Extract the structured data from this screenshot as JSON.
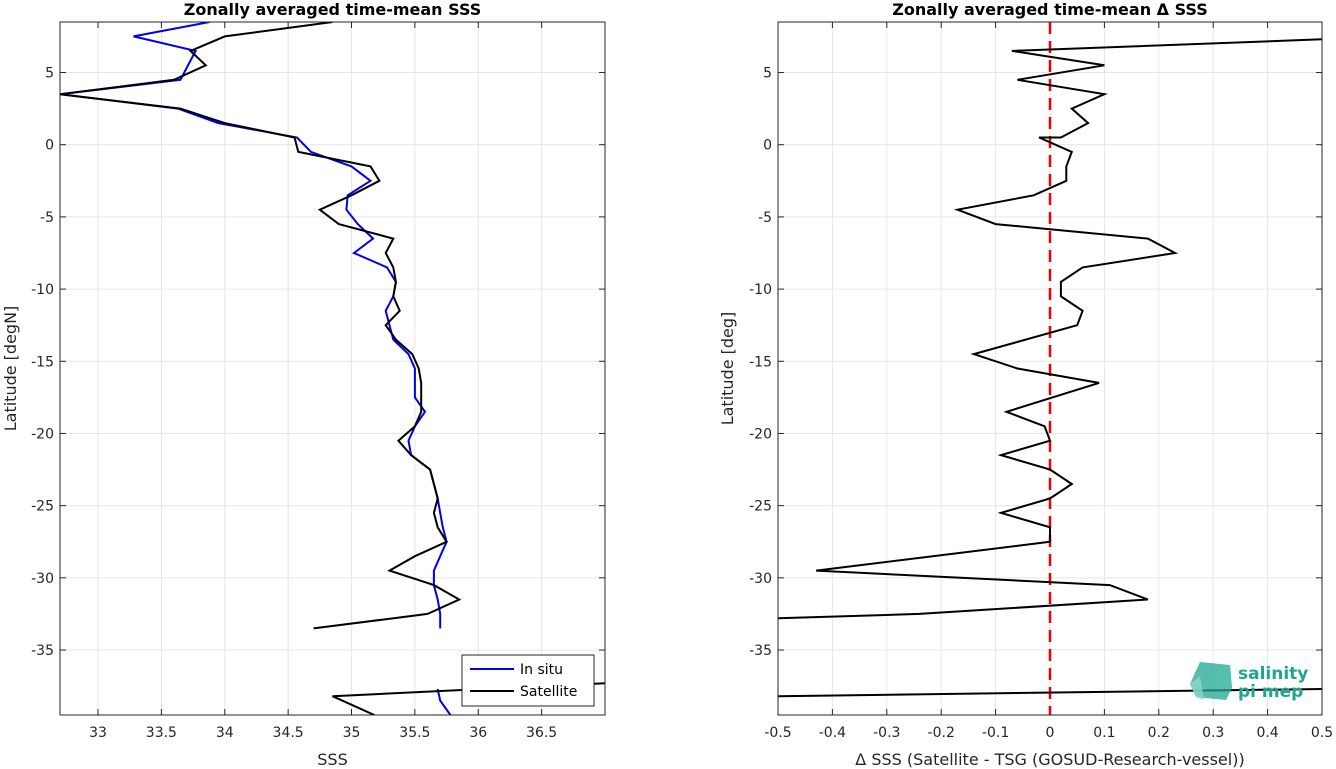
{
  "chart_data": [
    {
      "type": "line",
      "title": "Zonally averaged time-mean SSS",
      "xlabel": "SSS",
      "ylabel": "Latitude [degN]",
      "xlim": [
        32.7,
        37.0
      ],
      "ylim": [
        -39.5,
        8.5
      ],
      "xticks": [
        "33",
        "33.5",
        "34",
        "34.5",
        "35",
        "35.5",
        "36",
        "36.5"
      ],
      "yticks": [
        "5",
        "0",
        "-5",
        "-10",
        "-15",
        "-20",
        "-25",
        "-30",
        "-35"
      ],
      "grid": true,
      "legend": {
        "position": "bottom-right",
        "entries": [
          "In situ",
          "Satellite"
        ]
      },
      "series": [
        {
          "name": "In situ",
          "color": "#0000ee",
          "segments": [
            [
              [
                33.88,
                8.5
              ],
              [
                33.28,
                7.5
              ],
              [
                33.77,
                6.5
              ],
              [
                33.65,
                4.5
              ],
              [
                32.7,
                3.5
              ],
              [
                33.63,
                2.5
              ],
              [
                33.95,
                1.5
              ],
              [
                34.57,
                0.5
              ],
              [
                34.68,
                -0.5
              ],
              [
                35.0,
                -1.5
              ],
              [
                35.15,
                -2.5
              ],
              [
                34.97,
                -3.5
              ],
              [
                34.96,
                -4.5
              ],
              [
                35.05,
                -5.5
              ],
              [
                35.17,
                -6.5
              ],
              [
                35.02,
                -7.5
              ],
              [
                35.28,
                -8.5
              ],
              [
                35.35,
                -9.5
              ],
              [
                35.33,
                -10.5
              ],
              [
                35.27,
                -11.5
              ],
              [
                35.3,
                -12.5
              ],
              [
                35.33,
                -13.5
              ],
              [
                35.45,
                -14.5
              ],
              [
                35.5,
                -15.5
              ],
              [
                35.5,
                -16.5
              ],
              [
                35.5,
                -17.5
              ],
              [
                35.58,
                -18.5
              ],
              [
                35.5,
                -19.5
              ],
              [
                35.45,
                -20.5
              ],
              [
                35.47,
                -21.5
              ],
              [
                35.62,
                -22.5
              ],
              [
                35.65,
                -23.5
              ],
              [
                35.68,
                -24.5
              ],
              [
                35.7,
                -25.5
              ],
              [
                35.72,
                -26.5
              ],
              [
                35.75,
                -27.5
              ],
              [
                35.7,
                -28.5
              ],
              [
                35.65,
                -29.5
              ],
              [
                35.65,
                -30.5
              ],
              [
                35.68,
                -31.5
              ],
              [
                35.7,
                -32.5
              ],
              [
                35.7,
                -33.5
              ]
            ],
            [
              [
                35.68,
                -37.7
              ],
              [
                35.7,
                -38.5
              ],
              [
                35.78,
                -39.5
              ]
            ]
          ]
        },
        {
          "name": "Satellite",
          "color": "#000000",
          "segments": [
            [
              [
                34.85,
                8.5
              ],
              [
                34.0,
                7.5
              ],
              [
                33.73,
                6.5
              ],
              [
                33.85,
                5.5
              ],
              [
                33.6,
                4.5
              ],
              [
                32.7,
                3.5
              ],
              [
                33.65,
                2.5
              ],
              [
                34.0,
                1.5
              ],
              [
                34.55,
                0.5
              ],
              [
                34.58,
                -0.5
              ],
              [
                35.15,
                -1.5
              ],
              [
                35.22,
                -2.5
              ],
              [
                35.0,
                -3.5
              ],
              [
                34.75,
                -4.5
              ],
              [
                34.9,
                -5.5
              ],
              [
                35.33,
                -6.5
              ],
              [
                35.27,
                -7.5
              ],
              [
                35.33,
                -8.5
              ],
              [
                35.35,
                -9.5
              ],
              [
                35.33,
                -10.5
              ],
              [
                35.38,
                -11.5
              ],
              [
                35.27,
                -12.5
              ],
              [
                35.35,
                -13.5
              ],
              [
                35.48,
                -14.5
              ],
              [
                35.53,
                -15.5
              ],
              [
                35.55,
                -16.5
              ],
              [
                35.55,
                -17.5
              ],
              [
                35.55,
                -18.5
              ],
              [
                35.5,
                -19.5
              ],
              [
                35.37,
                -20.5
              ],
              [
                35.47,
                -21.5
              ],
              [
                35.62,
                -22.5
              ],
              [
                35.65,
                -23.5
              ],
              [
                35.68,
                -24.5
              ],
              [
                35.65,
                -25.5
              ],
              [
                35.68,
                -26.5
              ],
              [
                35.75,
                -27.5
              ],
              [
                35.5,
                -28.5
              ],
              [
                35.3,
                -29.5
              ],
              [
                35.65,
                -30.5
              ],
              [
                35.85,
                -31.5
              ],
              [
                35.6,
                -32.5
              ],
              [
                34.7,
                -33.5
              ]
            ],
            [
              [
                37.0,
                -37.3
              ],
              [
                34.85,
                -38.2
              ],
              [
                35.18,
                -39.5
              ]
            ]
          ]
        }
      ]
    },
    {
      "type": "line",
      "title": "Zonally averaged time-mean Δ SSS",
      "xlabel": "Δ SSS (Satellite - TSG (GOSUD-Research-vessel))",
      "ylabel": "Latitude [deg]",
      "xlim": [
        -0.5,
        0.5
      ],
      "ylim": [
        -39.5,
        8.5
      ],
      "xticks": [
        "-0.5",
        "-0.4",
        "-0.3",
        "-0.2",
        "-0.1",
        "0",
        "0.1",
        "0.2",
        "0.3",
        "0.4",
        "0.5"
      ],
      "yticks": [
        "5",
        "0",
        "-5",
        "-10",
        "-15",
        "-20",
        "-25",
        "-30",
        "-35"
      ],
      "grid": true,
      "reference_line": {
        "x": 0,
        "color": "#ee0000",
        "style": "dashed"
      },
      "series": [
        {
          "color": "#000000",
          "segments": [
            [
              [
                0.5,
                7.3
              ],
              [
                -0.07,
                6.5
              ],
              [
                0.1,
                5.5
              ],
              [
                -0.06,
                4.5
              ],
              [
                0.1,
                3.5
              ],
              [
                0.04,
                2.5
              ],
              [
                0.07,
                1.5
              ],
              [
                0.02,
                0.5
              ],
              [
                -0.02,
                0.5
              ],
              [
                0.04,
                -0.5
              ],
              [
                0.03,
                -1.5
              ],
              [
                0.03,
                -2.5
              ],
              [
                -0.03,
                -3.5
              ],
              [
                -0.17,
                -4.5
              ],
              [
                -0.1,
                -5.5
              ],
              [
                0.18,
                -6.5
              ],
              [
                0.23,
                -7.5
              ],
              [
                0.06,
                -8.5
              ],
              [
                0.02,
                -9.5
              ],
              [
                0.02,
                -10.5
              ],
              [
                0.06,
                -11.5
              ],
              [
                0.05,
                -12.5
              ],
              [
                -0.14,
                -14.5
              ],
              [
                -0.06,
                -15.5
              ],
              [
                0.09,
                -16.5
              ],
              [
                -0.08,
                -18.5
              ],
              [
                -0.01,
                -19.5
              ],
              [
                0.0,
                -20.5
              ],
              [
                -0.09,
                -21.5
              ],
              [
                0.0,
                -22.5
              ],
              [
                0.04,
                -23.5
              ],
              [
                0.0,
                -24.5
              ],
              [
                -0.09,
                -25.5
              ],
              [
                0.0,
                -26.5
              ],
              [
                0.0,
                -27.5
              ],
              [
                -0.43,
                -29.5
              ],
              [
                0.11,
                -30.5
              ],
              [
                0.18,
                -31.5
              ],
              [
                -0.24,
                -32.5
              ],
              [
                -0.5,
                -32.8
              ]
            ],
            [
              [
                0.5,
                -37.7
              ],
              [
                -0.5,
                -38.2
              ]
            ]
          ]
        }
      ]
    }
  ],
  "logo": {
    "line1": "salinity",
    "line2": "pi mep"
  }
}
